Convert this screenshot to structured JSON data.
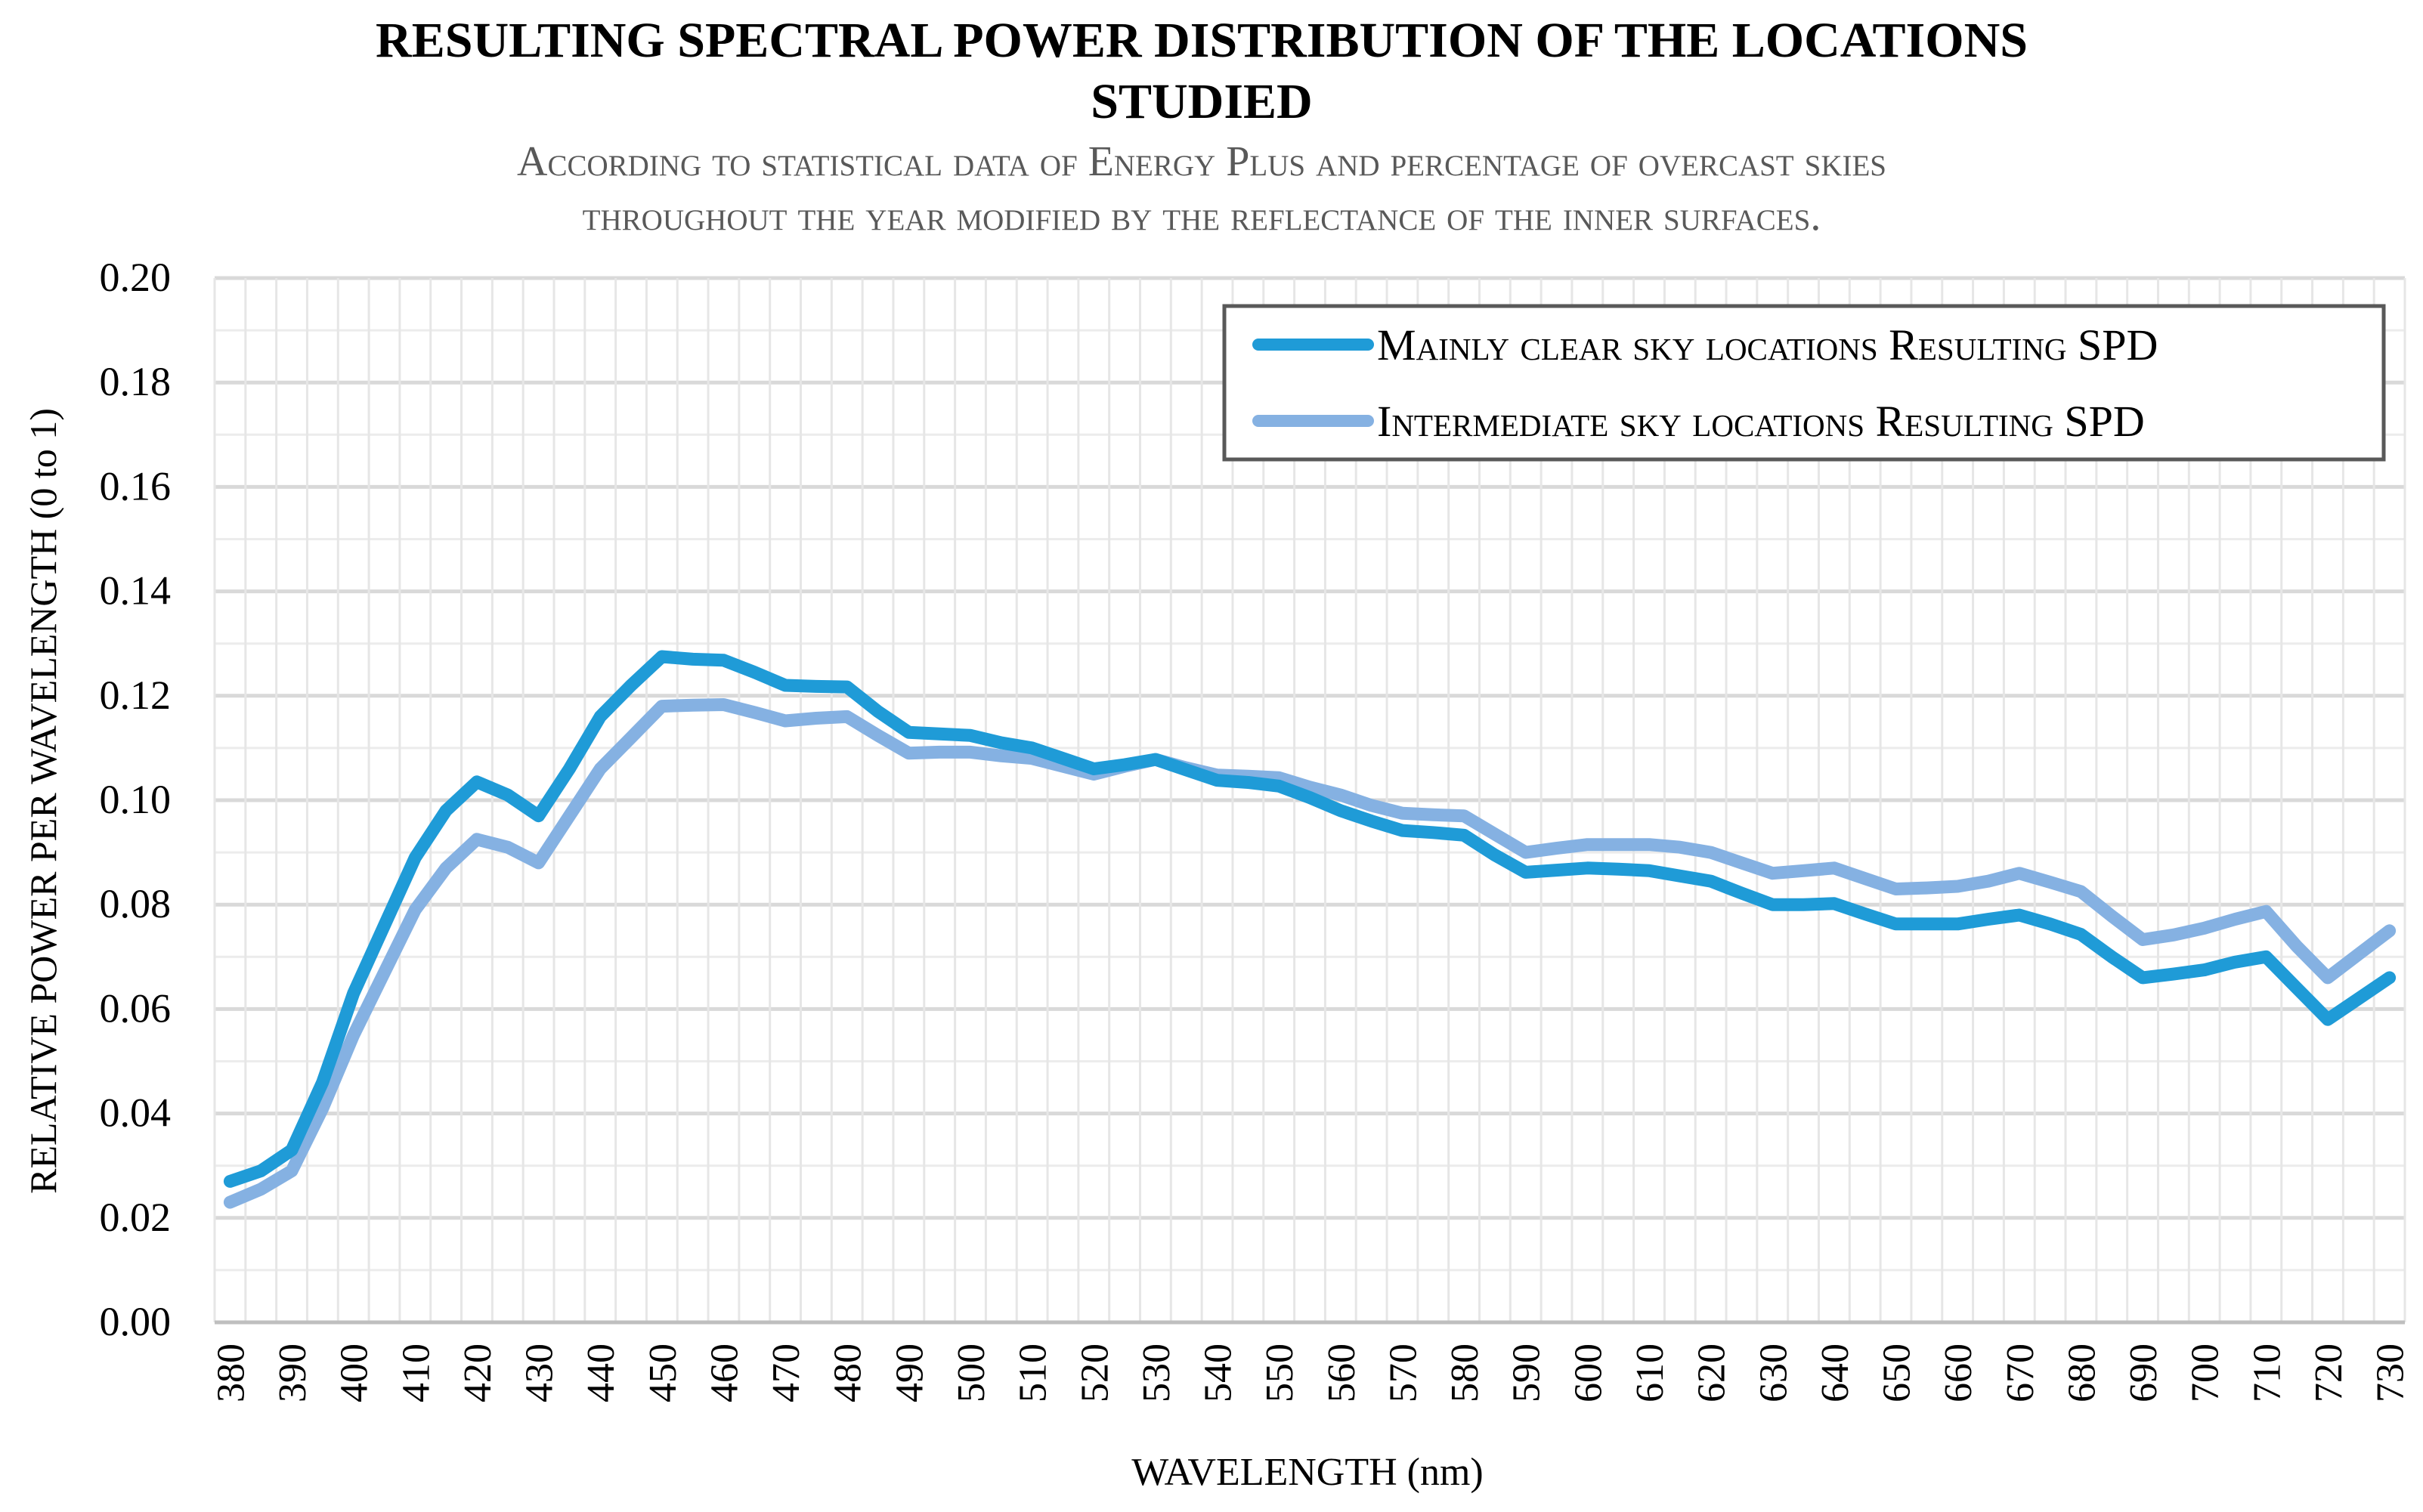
{
  "chart_data": {
    "type": "line",
    "title": "RESULTING SPECTRAL POWER DISTRIBUTION OF THE LOCATIONS STUDIED",
    "title_lines": [
      "RESULTING SPECTRAL POWER DISTRIBUTION OF THE LOCATIONS",
      "STUDIED"
    ],
    "subtitle_lines": [
      "According to statistical data of Energy Plus and percentage of overcast skies",
      "throughout the year modified by the reflectance of the inner surfaces."
    ],
    "xlabel": "WAVELENGTH (nm)",
    "ylabel": "RELATIVE POWER PER WAVELENGTH (0 to 1)",
    "ylim": [
      0,
      0.2
    ],
    "y_ticks": [
      "0.00",
      "0.02",
      "0.04",
      "0.06",
      "0.08",
      "0.10",
      "0.12",
      "0.14",
      "0.16",
      "0.18",
      "0.20"
    ],
    "x_tick_labels": [
      "380",
      "390",
      "400",
      "410",
      "420",
      "430",
      "440",
      "450",
      "460",
      "470",
      "480",
      "490",
      "500",
      "510",
      "520",
      "530",
      "540",
      "550",
      "560",
      "570",
      "580",
      "590",
      "600",
      "610",
      "620",
      "630",
      "640",
      "650",
      "660",
      "670",
      "680",
      "690",
      "700",
      "710",
      "720",
      "730"
    ],
    "x": [
      380,
      385,
      390,
      395,
      400,
      405,
      410,
      415,
      420,
      425,
      430,
      435,
      440,
      445,
      450,
      455,
      460,
      465,
      470,
      475,
      480,
      485,
      490,
      495,
      500,
      505,
      510,
      515,
      520,
      525,
      530,
      535,
      540,
      545,
      550,
      555,
      560,
      565,
      570,
      575,
      580,
      585,
      590,
      595,
      600,
      605,
      610,
      615,
      620,
      625,
      630,
      635,
      640,
      645,
      650,
      655,
      660,
      665,
      670,
      675,
      680,
      685,
      690,
      695,
      700,
      705,
      710,
      715,
      720,
      725,
      730
    ],
    "legend_position": "top-right",
    "grid": true,
    "series": [
      {
        "name": "Mainly clear sky locations Resulting SPD",
        "color": "#1f9bd7",
        "values": [
          0.027,
          0.029,
          0.033,
          0.046,
          0.063,
          0.076,
          0.089,
          0.098,
          0.1035,
          0.101,
          0.097,
          0.106,
          0.116,
          0.122,
          0.1275,
          0.127,
          0.1268,
          0.1245,
          0.122,
          0.1218,
          0.1217,
          0.117,
          0.113,
          0.1127,
          0.1124,
          0.111,
          0.11,
          0.108,
          0.106,
          0.1068,
          0.1078,
          0.1058,
          0.1038,
          0.1034,
          0.1027,
          0.1005,
          0.098,
          0.096,
          0.0942,
          0.0938,
          0.0933,
          0.0895,
          0.0862,
          0.0866,
          0.087,
          0.0868,
          0.0865,
          0.0855,
          0.0845,
          0.0822,
          0.08,
          0.08,
          0.0802,
          0.0782,
          0.0763,
          0.0763,
          0.0763,
          0.0772,
          0.078,
          0.0763,
          0.0743,
          0.07,
          0.066,
          0.0667,
          0.0675,
          0.069,
          0.07,
          0.064,
          0.058,
          0.062,
          0.066
        ]
      },
      {
        "name": "Intermediate sky locations Resulting SPD",
        "color": "#85b1e2",
        "values": [
          0.023,
          0.0255,
          0.029,
          0.041,
          0.055,
          0.067,
          0.079,
          0.087,
          0.0925,
          0.091,
          0.088,
          0.097,
          0.106,
          0.112,
          0.118,
          0.1182,
          0.1183,
          0.1168,
          0.1152,
          0.1157,
          0.116,
          0.1124,
          0.109,
          0.1092,
          0.1092,
          0.1085,
          0.108,
          0.1065,
          0.105,
          0.1065,
          0.1078,
          0.1062,
          0.1048,
          0.1046,
          0.1043,
          0.1025,
          0.101,
          0.099,
          0.0975,
          0.0972,
          0.097,
          0.0935,
          0.09,
          0.0908,
          0.0915,
          0.0915,
          0.0915,
          0.091,
          0.09,
          0.088,
          0.086,
          0.0865,
          0.087,
          0.085,
          0.083,
          0.0832,
          0.0835,
          0.0845,
          0.086,
          0.0843,
          0.0825,
          0.0778,
          0.0733,
          0.0742,
          0.0755,
          0.0772,
          0.0787,
          0.072,
          0.066,
          0.0705,
          0.075
        ]
      }
    ]
  }
}
